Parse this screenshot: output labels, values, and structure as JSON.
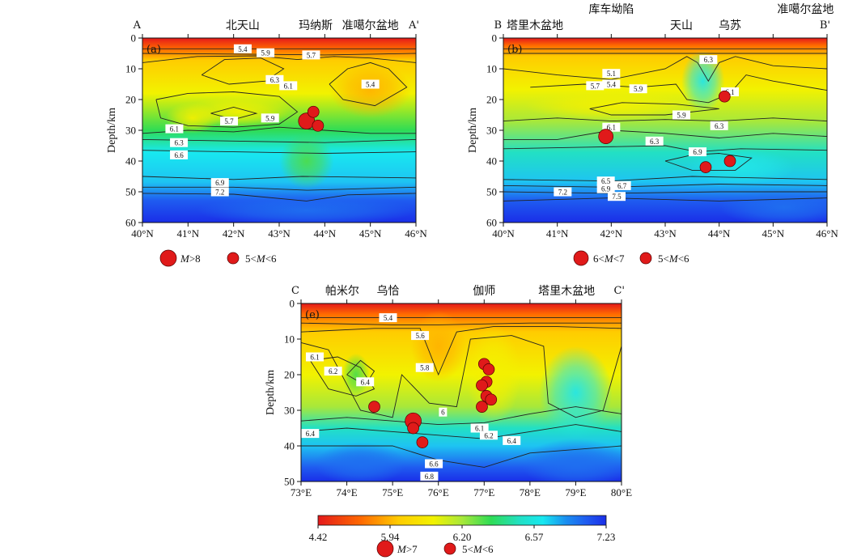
{
  "colors": {
    "colormap": [
      "#e4191b",
      "#ff6a00",
      "#ffcc00",
      "#f2f200",
      "#a8e83a",
      "#2fdc55",
      "#22e0c4",
      "#18e8f0",
      "#1ec4f2",
      "#1a8ff0",
      "#1f5cf0",
      "#1a2ee8"
    ],
    "event_fill": "#e01a1a",
    "contour": "#222222"
  },
  "chart_data": [
    {
      "panel": "(a)",
      "type": "heatmap",
      "profile_start": "A",
      "profile_end": "A'",
      "top_labels": [
        {
          "text": "北天山",
          "x": 42.2
        },
        {
          "text": "玛纳斯",
          "x": 43.8
        },
        {
          "text": "准噶尔盆地",
          "x": 45.0
        }
      ],
      "xlabel": "",
      "ylabel": "Depth/km",
      "xlim": [
        40,
        46
      ],
      "ylim": [
        0,
        60
      ],
      "x_ticks": [
        "40°N",
        "41°N",
        "42°N",
        "43°N",
        "44°N",
        "45°N",
        "46°N"
      ],
      "y_ticks": [
        "0",
        "10",
        "20",
        "30",
        "40",
        "50",
        "60"
      ],
      "contour_labels": [
        {
          "text": "5.4",
          "x": 42.2,
          "y": 3.5
        },
        {
          "text": "5.9",
          "x": 42.7,
          "y": 4.8
        },
        {
          "text": "5.7",
          "x": 43.7,
          "y": 5.5
        },
        {
          "text": "6.3",
          "x": 42.9,
          "y": 13.5
        },
        {
          "text": "6.1",
          "x": 43.2,
          "y": 15.5
        },
        {
          "text": "5.4",
          "x": 45.0,
          "y": 15.0
        },
        {
          "text": "5.7",
          "x": 41.9,
          "y": 27.0
        },
        {
          "text": "5.9",
          "x": 42.8,
          "y": 26.0
        },
        {
          "text": "6.1",
          "x": 40.7,
          "y": 29.5
        },
        {
          "text": "6.3",
          "x": 40.8,
          "y": 34.0
        },
        {
          "text": "6.6",
          "x": 40.8,
          "y": 38.0
        },
        {
          "text": "6.9",
          "x": 41.7,
          "y": 47.0
        },
        {
          "text": "7.2",
          "x": 41.7,
          "y": 50.0
        }
      ],
      "events": [
        {
          "x": 43.6,
          "y": 27.0,
          "class": "M>8"
        },
        {
          "x": 43.75,
          "y": 24.0,
          "class": "5<M<6"
        },
        {
          "x": 43.85,
          "y": 28.5,
          "class": "5<M<6"
        }
      ],
      "legend": [
        {
          "label": "M>8",
          "class": "M>8"
        },
        {
          "label": "5<M<6",
          "class": "5<M<6"
        }
      ]
    },
    {
      "panel": "(b)",
      "type": "heatmap",
      "profile_start": "B",
      "profile_end": "B'",
      "top_labels": [
        {
          "text": "塔里木盆地",
          "x": 40.6
        },
        {
          "text": "库车坳陷",
          "x": 42.0
        },
        {
          "text": "天山",
          "x": 43.3
        },
        {
          "text": "乌苏",
          "x": 44.2
        },
        {
          "text": "准噶尔盆地",
          "x": 45.6
        }
      ],
      "xlabel": "",
      "ylabel": "Depth/km",
      "xlim": [
        40,
        46
      ],
      "ylim": [
        0,
        60
      ],
      "x_ticks": [
        "40°N",
        "41°N",
        "42°N",
        "43°N",
        "44°N",
        "45°N",
        "46°N"
      ],
      "y_ticks": [
        "0",
        "10",
        "20",
        "30",
        "40",
        "50",
        "60"
      ],
      "contour_labels": [
        {
          "text": "6.3",
          "x": 43.8,
          "y": 7.0
        },
        {
          "text": "5.1",
          "x": 42.0,
          "y": 11.5
        },
        {
          "text": "5.4",
          "x": 42.0,
          "y": 15.0
        },
        {
          "text": "5.7",
          "x": 41.7,
          "y": 15.5
        },
        {
          "text": "5.9",
          "x": 42.5,
          "y": 16.5
        },
        {
          "text": "6.1",
          "x": 44.2,
          "y": 17.5
        },
        {
          "text": "5.9",
          "x": 43.3,
          "y": 25.0
        },
        {
          "text": "6.3",
          "x": 44.0,
          "y": 28.5
        },
        {
          "text": "6.1",
          "x": 42.0,
          "y": 29.0
        },
        {
          "text": "6.3",
          "x": 42.8,
          "y": 33.5
        },
        {
          "text": "6.9",
          "x": 43.6,
          "y": 37.0
        },
        {
          "text": "6.5",
          "x": 41.9,
          "y": 46.5
        },
        {
          "text": "6.7",
          "x": 42.2,
          "y": 48.0
        },
        {
          "text": "6.9",
          "x": 41.9,
          "y": 49.0
        },
        {
          "text": "7.2",
          "x": 41.1,
          "y": 50.0
        },
        {
          "text": "7.5",
          "x": 42.1,
          "y": 51.5
        }
      ],
      "events": [
        {
          "x": 41.9,
          "y": 32.0,
          "class": "6<M<7"
        },
        {
          "x": 44.1,
          "y": 19.0,
          "class": "5<M<6"
        },
        {
          "x": 43.75,
          "y": 42.0,
          "class": "5<M<6"
        },
        {
          "x": 44.2,
          "y": 40.0,
          "class": "5<M<6"
        }
      ],
      "legend": [
        {
          "label": "6<M<7",
          "class": "6<M<7"
        },
        {
          "label": "5<M<6",
          "class": "5<M<6"
        }
      ]
    },
    {
      "panel": "(e)",
      "type": "heatmap",
      "profile_start": "C",
      "profile_end": "C'",
      "top_labels": [
        {
          "text": "帕米尔",
          "x": 73.9
        },
        {
          "text": "乌恰",
          "x": 74.9
        },
        {
          "text": "伽师",
          "x": 77.0
        },
        {
          "text": "塔里木盆地",
          "x": 78.8
        }
      ],
      "xlabel": "",
      "ylabel": "Depth/km",
      "xlim": [
        73,
        80
      ],
      "ylim": [
        0,
        50
      ],
      "x_ticks": [
        "73°E",
        "74°E",
        "75°E",
        "76°E",
        "77°E",
        "78°E",
        "79°E",
        "80°E"
      ],
      "y_ticks": [
        "0",
        "10",
        "20",
        "30",
        "40",
        "50"
      ],
      "contour_labels": [
        {
          "text": "5.4",
          "x": 74.9,
          "y": 4.0
        },
        {
          "text": "5.6",
          "x": 75.6,
          "y": 9.0
        },
        {
          "text": "6.1",
          "x": 73.3,
          "y": 15.0
        },
        {
          "text": "6.2",
          "x": 73.7,
          "y": 19.0
        },
        {
          "text": "6.4",
          "x": 74.4,
          "y": 22.0
        },
        {
          "text": "5.8",
          "x": 75.7,
          "y": 18.0
        },
        {
          "text": "6",
          "x": 76.1,
          "y": 30.5
        },
        {
          "text": "6.1",
          "x": 76.9,
          "y": 35.0
        },
        {
          "text": "6.2",
          "x": 77.1,
          "y": 37.0
        },
        {
          "text": "6.4",
          "x": 77.6,
          "y": 38.5
        },
        {
          "text": "6.4",
          "x": 73.2,
          "y": 36.5
        },
        {
          "text": "6.6",
          "x": 75.9,
          "y": 45.0
        },
        {
          "text": "6.8",
          "x": 75.8,
          "y": 48.5
        }
      ],
      "events": [
        {
          "x": 74.6,
          "y": 29.0,
          "class": "5<M<6"
        },
        {
          "x": 75.45,
          "y": 33.0,
          "class": "M>7"
        },
        {
          "x": 75.45,
          "y": 35.0,
          "class": "5<M<6"
        },
        {
          "x": 75.65,
          "y": 39.0,
          "class": "5<M<6"
        },
        {
          "x": 77.0,
          "y": 17.0,
          "class": "5<M<6"
        },
        {
          "x": 77.1,
          "y": 18.5,
          "class": "5<M<6"
        },
        {
          "x": 77.05,
          "y": 22.0,
          "class": "5<M<6"
        },
        {
          "x": 76.95,
          "y": 23.0,
          "class": "5<M<6"
        },
        {
          "x": 77.05,
          "y": 26.0,
          "class": "5<M<6"
        },
        {
          "x": 77.15,
          "y": 27.0,
          "class": "5<M<6"
        },
        {
          "x": 76.95,
          "y": 29.0,
          "class": "5<M<6"
        }
      ],
      "legend": [
        {
          "label": "M>7",
          "class": "M>7"
        },
        {
          "label": "5<M<6",
          "class": "5<M<6"
        }
      ]
    }
  ],
  "colorbar": {
    "ticks": [
      "4.42",
      "5.94",
      "6.20",
      "6.57",
      "7.23"
    ]
  }
}
